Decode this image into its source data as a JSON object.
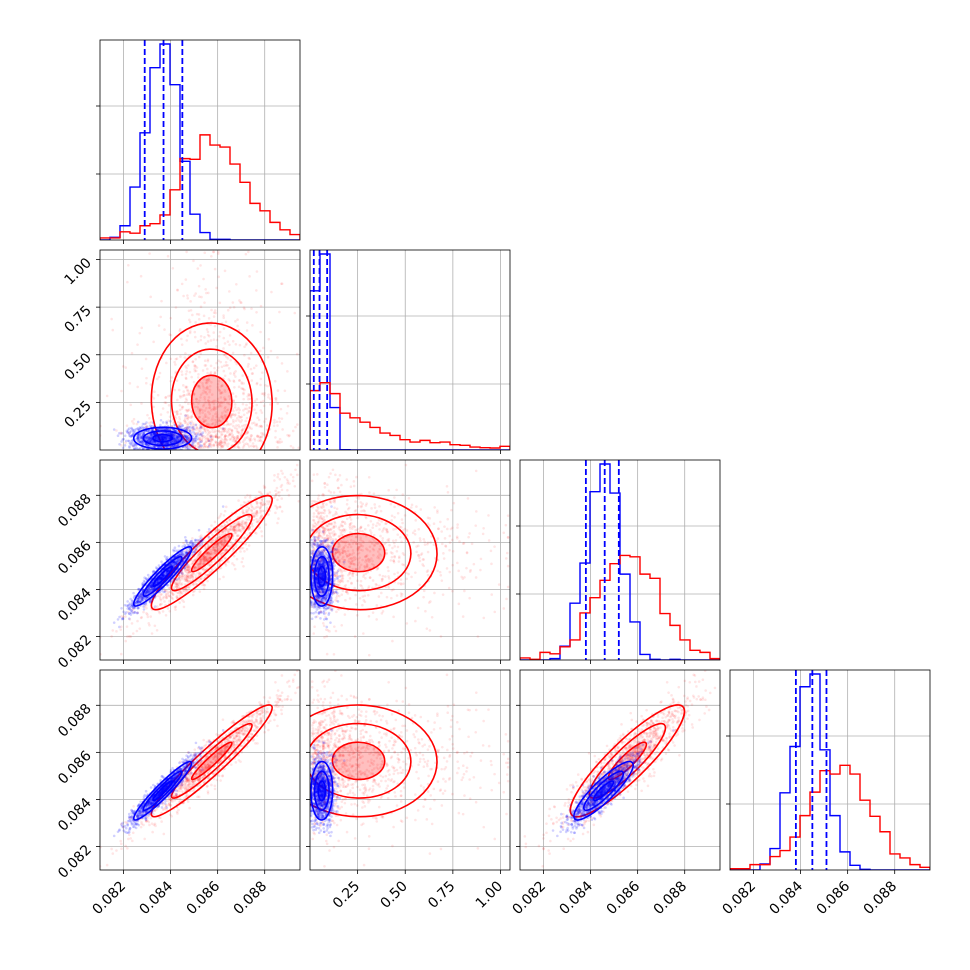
{
  "chart_data": {
    "type": "scatter",
    "kind": "corner-plot",
    "grid": true,
    "colors": {
      "series_a": "#0000ff",
      "series_b": "#ff0000"
    },
    "parameters": [
      {
        "range": [
          0.081,
          0.0895
        ],
        "ticks": [
          0.082,
          0.084,
          0.086,
          0.088
        ],
        "tick_labels": [
          "0.082",
          "0.084",
          "0.086",
          "0.088"
        ]
      },
      {
        "range": [
          0.0,
          1.05
        ],
        "ticks": [
          0.25,
          0.5,
          0.75,
          1.0
        ],
        "tick_labels": [
          "0.25",
          "0.50",
          "0.75",
          "1.00"
        ]
      },
      {
        "range": [
          0.081,
          0.0895
        ],
        "ticks": [
          0.082,
          0.084,
          0.086,
          0.088
        ],
        "tick_labels": [
          "0.082",
          "0.084",
          "0.086",
          "0.088"
        ]
      },
      {
        "range": [
          0.081,
          0.0895
        ],
        "ticks": [
          0.082,
          0.084,
          0.086,
          0.088
        ],
        "tick_labels": [
          "0.082",
          "0.084",
          "0.086",
          "0.088"
        ]
      }
    ],
    "series": [
      {
        "color": "#0000ff",
        "means": [
          0.0837,
          0.06,
          0.0846,
          0.0844
        ],
        "sds": [
          0.0007,
          0.035,
          0.0007,
          0.0007
        ],
        "quantile_lines": [
          [
            0.0829,
            0.0837,
            0.0845
          ],
          [
            0.02,
            0.05,
            0.09
          ],
          [
            0.0838,
            0.0846,
            0.0852
          ],
          [
            0.0838,
            0.0845,
            0.0851
          ]
        ]
      },
      {
        "color": "#ff0000",
        "means": [
          0.0858,
          0.3,
          0.0856,
          0.0857
        ],
        "sds": [
          0.0014,
          0.22,
          0.0013,
          0.0013
        ]
      }
    ]
  }
}
